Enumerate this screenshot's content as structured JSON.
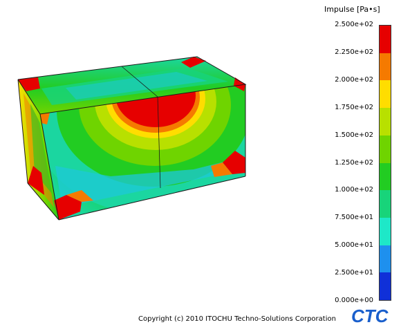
{
  "legend": {
    "title": "Impulse [Pa•s]",
    "labels": [
      "2.500e+02",
      "2.250e+02",
      "2.000e+02",
      "1.750e+02",
      "1.500e+02",
      "1.250e+02",
      "1.000e+02",
      "7.500e+01",
      "5.000e+01",
      "2.500e+01",
      "0.000e+00"
    ],
    "colors": [
      "#e60000",
      "#f57a00",
      "#ffdd00",
      "#b8e000",
      "#6fd400",
      "#22cc22",
      "#18d47a",
      "#1ee8c8",
      "#1e90ee",
      "#1030d8"
    ]
  },
  "model": {
    "colors": {
      "hot": "#e60000",
      "orange": "#f57a00",
      "yellow": "#ffdd00",
      "lime": "#b8e000",
      "green": "#6fd400",
      "mid_green": "#22cc22",
      "teal": "#1bd6a0",
      "cyan": "#1ec8d8",
      "edge": "#1a1a1a"
    }
  },
  "footer": {
    "copyright": "Copyright (c) 2010 ITOCHU Techno-Solutions Corporation",
    "logo_text": "CTC",
    "logo_color": "#1a5fcc"
  }
}
